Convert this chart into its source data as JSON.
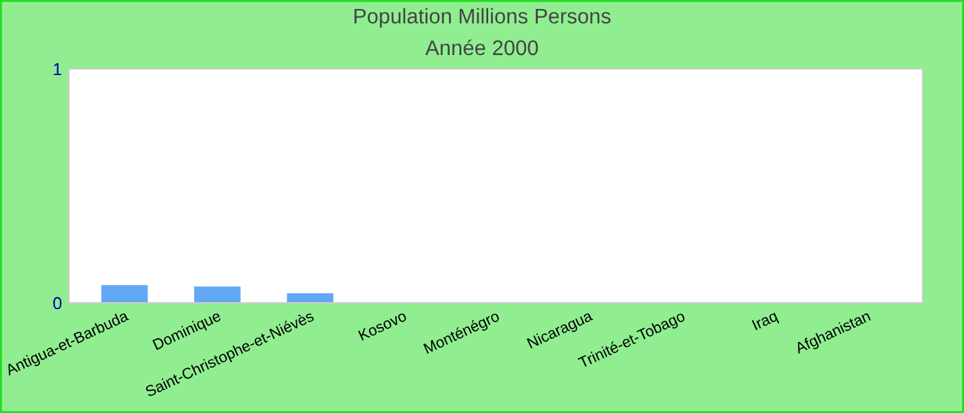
{
  "chart_data": {
    "type": "bar",
    "title": "Population Millions Persons",
    "subtitle": "Année 2000",
    "categories": [
      "Antigua-et-Barbuda",
      "Dominique",
      "Saint-Christophe-et-Niévès",
      "Kosovo",
      "Monténégro",
      "Nicaragua",
      "Trinité-et-Tobago",
      "Iraq",
      "Afghanistan"
    ],
    "values": [
      0.076,
      0.07,
      0.041,
      null,
      null,
      null,
      null,
      null,
      null
    ],
    "color": "#63a8f5",
    "ylim": [
      0,
      1
    ],
    "yticks": [
      0,
      1
    ],
    "grid": false,
    "legend": false
  }
}
